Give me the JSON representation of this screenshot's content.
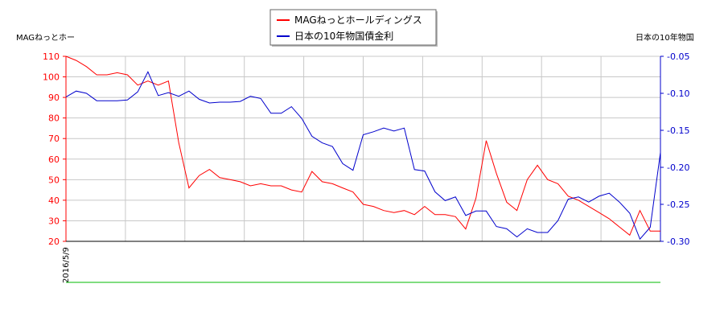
{
  "chart_data": {
    "type": "line",
    "left_axis": {
      "label": "MAGねっとホー",
      "ylim": [
        20,
        110
      ],
      "ticks": [
        20,
        30,
        40,
        50,
        60,
        70,
        80,
        90,
        100,
        110
      ],
      "color": "#ff0000"
    },
    "right_axis": {
      "label": "日本の10年物国",
      "ylim": [
        -0.3,
        -0.05
      ],
      "ticks": [
        -0.3,
        -0.25,
        -0.2,
        -0.15,
        -0.1,
        -0.05
      ],
      "tick_labels": [
        "-0.30",
        "-0.25",
        "-0.20",
        "-0.15",
        "-0.10",
        "-0.05"
      ],
      "color": "#0000cc"
    },
    "x_tick_labels": [
      "2016/5/9"
    ],
    "grid": true,
    "legend": {
      "placement": "top-center"
    },
    "series": [
      {
        "name": "MAGねっとホールディングス",
        "axis": "left",
        "color": "#ff0000",
        "values": [
          110,
          108,
          105,
          101,
          101,
          102,
          101,
          96,
          98,
          96,
          98,
          68,
          46,
          52,
          55,
          51,
          50,
          49,
          47,
          48,
          47,
          47,
          45,
          44,
          54,
          49,
          48,
          46,
          44,
          38,
          37,
          35,
          34,
          35,
          33,
          37,
          33,
          33,
          32,
          26,
          41,
          69,
          53,
          39,
          35,
          50,
          57,
          50,
          48,
          42,
          40,
          37,
          34,
          31,
          27,
          23,
          35,
          25,
          25
        ]
      },
      {
        "name": "日本の10年物国債金利",
        "axis": "right",
        "color": "#0000cc",
        "values": [
          -0.105,
          -0.097,
          -0.1,
          -0.11,
          -0.11,
          -0.11,
          -0.109,
          -0.098,
          -0.071,
          -0.103,
          -0.099,
          -0.104,
          -0.097,
          -0.108,
          -0.113,
          -0.112,
          -0.112,
          -0.111,
          -0.104,
          -0.107,
          -0.127,
          -0.127,
          -0.118,
          -0.134,
          -0.158,
          -0.167,
          -0.172,
          -0.195,
          -0.204,
          -0.156,
          -0.152,
          -0.147,
          -0.151,
          -0.147,
          -0.203,
          -0.205,
          -0.233,
          -0.245,
          -0.24,
          -0.265,
          -0.259,
          -0.259,
          -0.28,
          -0.283,
          -0.294,
          -0.283,
          -0.288,
          -0.288,
          -0.272,
          -0.243,
          -0.24,
          -0.247,
          -0.239,
          -0.235,
          -0.247,
          -0.262,
          -0.297,
          -0.281,
          -0.18
        ]
      }
    ],
    "bottom_line": {
      "color": "#00bb00"
    }
  }
}
